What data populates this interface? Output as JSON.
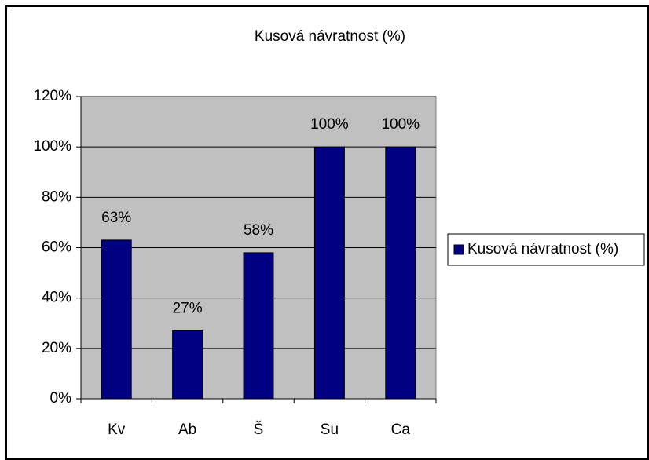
{
  "chart_data": {
    "type": "bar",
    "title": "Kusová návratnost (%)",
    "categories": [
      "Kv",
      "Ab",
      "Š",
      "Su",
      "Ca"
    ],
    "series": [
      {
        "name": "Kusová návratnost (%)",
        "color": "#000080",
        "values": [
          63,
          27,
          58,
          100,
          100
        ],
        "value_labels": [
          "63%",
          "27%",
          "58%",
          "100%",
          "100%"
        ]
      }
    ],
    "ylim": [
      0,
      120
    ],
    "yticks": [
      {
        "value": 0,
        "label": "0%"
      },
      {
        "value": 20,
        "label": "20%"
      },
      {
        "value": 40,
        "label": "40%"
      },
      {
        "value": 60,
        "label": "60%"
      },
      {
        "value": 80,
        "label": "80%"
      },
      {
        "value": 100,
        "label": "100%"
      },
      {
        "value": 120,
        "label": "120%"
      }
    ],
    "grid": true,
    "legend": "right",
    "plot_background": "#c0c0c0"
  }
}
